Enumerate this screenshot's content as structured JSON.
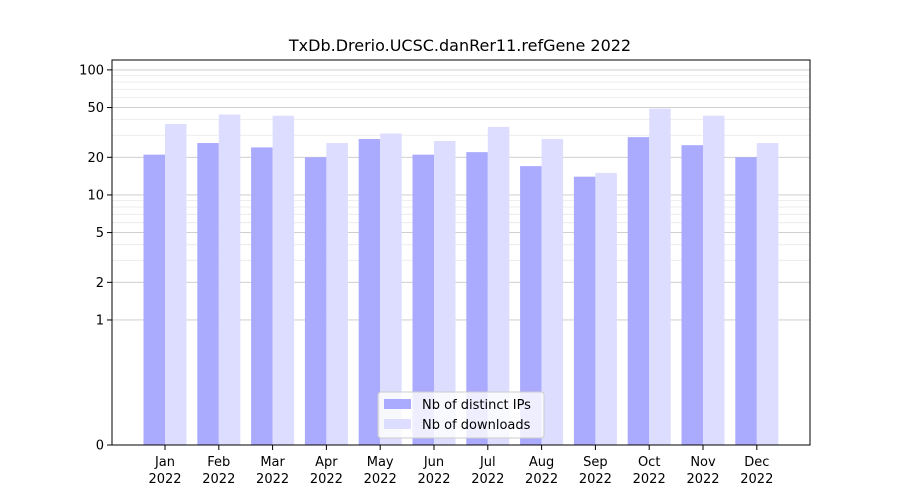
{
  "chart_data": {
    "type": "bar",
    "title": "TxDb.Drerio.UCSC.danRer11.refGene 2022",
    "xlabel": "",
    "ylabel": "",
    "yscale": "symlog",
    "ylim": [
      0,
      120
    ],
    "yticks": [
      0,
      1,
      2,
      5,
      10,
      20,
      50,
      100
    ],
    "ytick_labels": [
      "0",
      "1",
      "2",
      "5",
      "10",
      "20",
      "50",
      "100"
    ],
    "grid": true,
    "legend_position": "bottom-center",
    "categories": [
      "Jan\n2022",
      "Feb\n2022",
      "Mar\n2022",
      "Apr\n2022",
      "May\n2022",
      "Jun\n2022",
      "Jul\n2022",
      "Aug\n2022",
      "Sep\n2022",
      "Oct\n2022",
      "Nov\n2022",
      "Dec\n2022"
    ],
    "category_month": [
      "Jan",
      "Feb",
      "Mar",
      "Apr",
      "May",
      "Jun",
      "Jul",
      "Aug",
      "Sep",
      "Oct",
      "Nov",
      "Dec"
    ],
    "category_year": [
      "2022",
      "2022",
      "2022",
      "2022",
      "2022",
      "2022",
      "2022",
      "2022",
      "2022",
      "2022",
      "2022",
      "2022"
    ],
    "series": [
      {
        "name": "Nb of distinct IPs",
        "color": "#aaaaff",
        "values": [
          21,
          26,
          24,
          20,
          28,
          21,
          22,
          17,
          14,
          29,
          25,
          20
        ]
      },
      {
        "name": "Nb of downloads",
        "color": "#ddddff",
        "values": [
          37,
          44,
          43,
          26,
          31,
          27,
          35,
          28,
          15,
          49,
          43,
          26
        ]
      }
    ]
  }
}
